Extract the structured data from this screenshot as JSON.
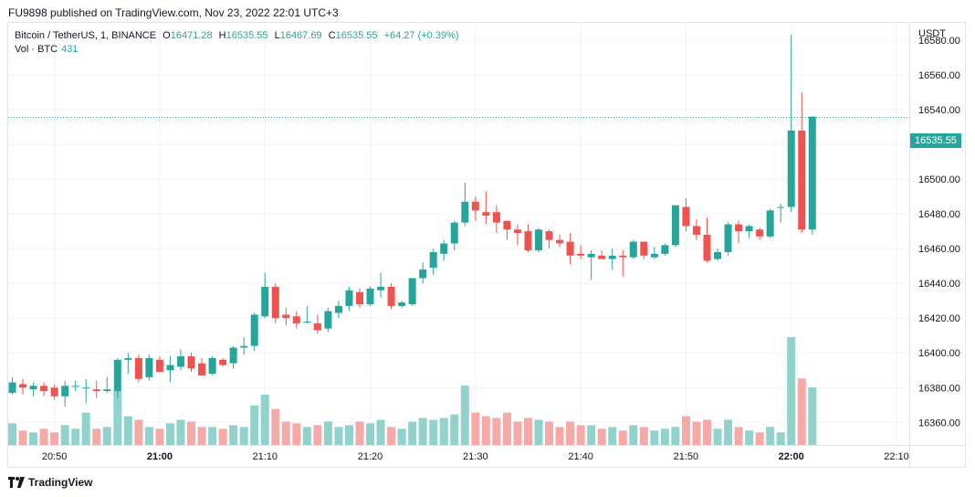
{
  "header": {
    "published": "FU9898 published on TradingView.com, Nov 23, 2022 22:01 UTC+3"
  },
  "legend": {
    "symbol": "Bitcoin / TetherUS, 1, BINANCE",
    "open_label": "O",
    "open": "16471.28",
    "high_label": "H",
    "high": "16535.55",
    "low_label": "L",
    "low": "16467.69",
    "close_label": "C",
    "close": "16535.55",
    "change": "+64.27 (+0.39%)",
    "vol_label": "Vol · BTC",
    "vol_value": "431"
  },
  "axis": {
    "currency": "USDT",
    "last_price": "16535.55"
  },
  "footer": {
    "brand": "TradingView"
  },
  "colors": {
    "up": "#26a69a",
    "down": "#ef5350",
    "up_vol": "#92d2cc",
    "down_vol": "#f7a9a7",
    "grid": "#f0f3fa"
  },
  "chart_data": {
    "type": "candlestick",
    "title": "Bitcoin / TetherUS, 1, BINANCE",
    "ylabel": "USDT",
    "ylim": [
      16347,
      16590
    ],
    "y_ticks": [
      16360,
      16380,
      16400,
      16420,
      16440,
      16460,
      16480,
      16500,
      16520,
      16540,
      16560,
      16580
    ],
    "x_ticks": [
      {
        "label": "20:50",
        "index": 4,
        "bold": false
      },
      {
        "label": "21:00",
        "index": 14,
        "bold": true
      },
      {
        "label": "21:10",
        "index": 24,
        "bold": false
      },
      {
        "label": "21:20",
        "index": 34,
        "bold": false
      },
      {
        "label": "21:30",
        "index": 44,
        "bold": false
      },
      {
        "label": "21:40",
        "index": 54,
        "bold": false
      },
      {
        "label": "21:50",
        "index": 64,
        "bold": false
      },
      {
        "label": "22:00",
        "index": 74,
        "bold": true
      },
      {
        "label": "22:10",
        "index": 84,
        "bold": false
      }
    ],
    "last_price": 16535.55,
    "candles": [
      {
        "o": 16377,
        "h": 16386,
        "l": 16376,
        "c": 16383,
        "v": 12
      },
      {
        "o": 16382,
        "h": 16385,
        "l": 16376,
        "c": 16380,
        "v": 8
      },
      {
        "o": 16379,
        "h": 16383,
        "l": 16375,
        "c": 16381,
        "v": 7
      },
      {
        "o": 16381,
        "h": 16383,
        "l": 16375,
        "c": 16378,
        "v": 9
      },
      {
        "o": 16380,
        "h": 16382,
        "l": 16373,
        "c": 16375,
        "v": 7
      },
      {
        "o": 16375,
        "h": 16384,
        "l": 16369,
        "c": 16381,
        "v": 11
      },
      {
        "o": 16381,
        "h": 16384,
        "l": 16378,
        "c": 16381,
        "v": 9
      },
      {
        "o": 16380,
        "h": 16385,
        "l": 16371,
        "c": 16380,
        "v": 18
      },
      {
        "o": 16379,
        "h": 16384,
        "l": 16374,
        "c": 16378,
        "v": 9
      },
      {
        "o": 16378,
        "h": 16386,
        "l": 16377,
        "c": 16379,
        "v": 10
      },
      {
        "o": 16378,
        "h": 16397,
        "l": 16374,
        "c": 16396,
        "v": 30
      },
      {
        "o": 16396,
        "h": 16400,
        "l": 16388,
        "c": 16397,
        "v": 16
      },
      {
        "o": 16397,
        "h": 16399,
        "l": 16383,
        "c": 16385,
        "v": 14
      },
      {
        "o": 16386,
        "h": 16399,
        "l": 16384,
        "c": 16397,
        "v": 10
      },
      {
        "o": 16396,
        "h": 16398,
        "l": 16389,
        "c": 16389,
        "v": 9
      },
      {
        "o": 16390,
        "h": 16398,
        "l": 16383,
        "c": 16393,
        "v": 12
      },
      {
        "o": 16392,
        "h": 16402,
        "l": 16390,
        "c": 16398,
        "v": 14
      },
      {
        "o": 16398,
        "h": 16400,
        "l": 16389,
        "c": 16391,
        "v": 13
      },
      {
        "o": 16394,
        "h": 16397,
        "l": 16387,
        "c": 16387,
        "v": 10
      },
      {
        "o": 16388,
        "h": 16398,
        "l": 16387,
        "c": 16397,
        "v": 10
      },
      {
        "o": 16396,
        "h": 16397,
        "l": 16392,
        "c": 16393,
        "v": 9
      },
      {
        "o": 16394,
        "h": 16404,
        "l": 16391,
        "c": 16403,
        "v": 11
      },
      {
        "o": 16403,
        "h": 16409,
        "l": 16399,
        "c": 16404,
        "v": 10
      },
      {
        "o": 16404,
        "h": 16423,
        "l": 16401,
        "c": 16422,
        "v": 22
      },
      {
        "o": 16421,
        "h": 16446,
        "l": 16420,
        "c": 16438,
        "v": 28
      },
      {
        "o": 16438,
        "h": 16440,
        "l": 16417,
        "c": 16420,
        "v": 20
      },
      {
        "o": 16422,
        "h": 16426,
        "l": 16416,
        "c": 16420,
        "v": 13
      },
      {
        "o": 16421,
        "h": 16424,
        "l": 16414,
        "c": 16417,
        "v": 12
      },
      {
        "o": 16418,
        "h": 16427,
        "l": 16417,
        "c": 16418,
        "v": 10
      },
      {
        "o": 16417,
        "h": 16422,
        "l": 16411,
        "c": 16413,
        "v": 11
      },
      {
        "o": 16414,
        "h": 16426,
        "l": 16412,
        "c": 16424,
        "v": 13
      },
      {
        "o": 16423,
        "h": 16430,
        "l": 16420,
        "c": 16427,
        "v": 10
      },
      {
        "o": 16427,
        "h": 16438,
        "l": 16424,
        "c": 16436,
        "v": 11
      },
      {
        "o": 16435,
        "h": 16437,
        "l": 16426,
        "c": 16428,
        "v": 13
      },
      {
        "o": 16428,
        "h": 16438,
        "l": 16427,
        "c": 16437,
        "v": 12
      },
      {
        "o": 16436,
        "h": 16446,
        "l": 16432,
        "c": 16438,
        "v": 14
      },
      {
        "o": 16438,
        "h": 16440,
        "l": 16425,
        "c": 16427,
        "v": 10
      },
      {
        "o": 16427,
        "h": 16430,
        "l": 16426,
        "c": 16429,
        "v": 9
      },
      {
        "o": 16428,
        "h": 16443,
        "l": 16427,
        "c": 16443,
        "v": 13
      },
      {
        "o": 16443,
        "h": 16452,
        "l": 16440,
        "c": 16448,
        "v": 15
      },
      {
        "o": 16449,
        "h": 16460,
        "l": 16445,
        "c": 16458,
        "v": 14
      },
      {
        "o": 16457,
        "h": 16465,
        "l": 16453,
        "c": 16463,
        "v": 15
      },
      {
        "o": 16463,
        "h": 16476,
        "l": 16459,
        "c": 16475,
        "v": 17
      },
      {
        "o": 16475,
        "h": 16498,
        "l": 16473,
        "c": 16487,
        "v": 33
      },
      {
        "o": 16487,
        "h": 16490,
        "l": 16476,
        "c": 16482,
        "v": 18
      },
      {
        "o": 16481,
        "h": 16493,
        "l": 16474,
        "c": 16479,
        "v": 16
      },
      {
        "o": 16481,
        "h": 16485,
        "l": 16469,
        "c": 16475,
        "v": 15
      },
      {
        "o": 16476,
        "h": 16476,
        "l": 16465,
        "c": 16471,
        "v": 18
      },
      {
        "o": 16471,
        "h": 16474,
        "l": 16462,
        "c": 16469,
        "v": 13
      },
      {
        "o": 16470,
        "h": 16474,
        "l": 16458,
        "c": 16459,
        "v": 15
      },
      {
        "o": 16459,
        "h": 16472,
        "l": 16458,
        "c": 16471,
        "v": 14
      },
      {
        "o": 16470,
        "h": 16471,
        "l": 16460,
        "c": 16465,
        "v": 13
      },
      {
        "o": 16465,
        "h": 16468,
        "l": 16461,
        "c": 16463,
        "v": 10
      },
      {
        "o": 16464,
        "h": 16469,
        "l": 16451,
        "c": 16456,
        "v": 13
      },
      {
        "o": 16457,
        "h": 16462,
        "l": 16454,
        "c": 16456,
        "v": 11
      },
      {
        "o": 16455,
        "h": 16459,
        "l": 16442,
        "c": 16457,
        "v": 11
      },
      {
        "o": 16456,
        "h": 16459,
        "l": 16454,
        "c": 16454,
        "v": 9
      },
      {
        "o": 16454,
        "h": 16460,
        "l": 16448,
        "c": 16456,
        "v": 10
      },
      {
        "o": 16456,
        "h": 16459,
        "l": 16444,
        "c": 16455,
        "v": 8
      },
      {
        "o": 16455,
        "h": 16465,
        "l": 16454,
        "c": 16464,
        "v": 11
      },
      {
        "o": 16464,
        "h": 16464,
        "l": 16454,
        "c": 16456,
        "v": 10
      },
      {
        "o": 16455,
        "h": 16461,
        "l": 16454,
        "c": 16457,
        "v": 8
      },
      {
        "o": 16457,
        "h": 16463,
        "l": 16456,
        "c": 16462,
        "v": 9
      },
      {
        "o": 16462,
        "h": 16485,
        "l": 16461,
        "c": 16485,
        "v": 10
      },
      {
        "o": 16484,
        "h": 16489,
        "l": 16470,
        "c": 16473,
        "v": 16
      },
      {
        "o": 16473,
        "h": 16477,
        "l": 16465,
        "c": 16468,
        "v": 13
      },
      {
        "o": 16468,
        "h": 16478,
        "l": 16452,
        "c": 16453,
        "v": 14
      },
      {
        "o": 16454,
        "h": 16460,
        "l": 16453,
        "c": 16458,
        "v": 9
      },
      {
        "o": 16458,
        "h": 16475,
        "l": 16456,
        "c": 16474,
        "v": 14
      },
      {
        "o": 16474,
        "h": 16476,
        "l": 16463,
        "c": 16470,
        "v": 10
      },
      {
        "o": 16470,
        "h": 16474,
        "l": 16466,
        "c": 16473,
        "v": 8
      },
      {
        "o": 16471,
        "h": 16472,
        "l": 16465,
        "c": 16467,
        "v": 7
      },
      {
        "o": 16467,
        "h": 16483,
        "l": 16466,
        "c": 16482,
        "v": 10
      },
      {
        "o": 16484,
        "h": 16486,
        "l": 16475,
        "c": 16484,
        "v": 7
      },
      {
        "o": 16484,
        "h": 16583,
        "l": 16481,
        "c": 16528,
        "v": 60
      },
      {
        "o": 16528,
        "h": 16550,
        "l": 16469,
        "c": 16471,
        "v": 37
      },
      {
        "o": 16471,
        "h": 16536,
        "l": 16468,
        "c": 16536,
        "v": 32
      }
    ]
  }
}
